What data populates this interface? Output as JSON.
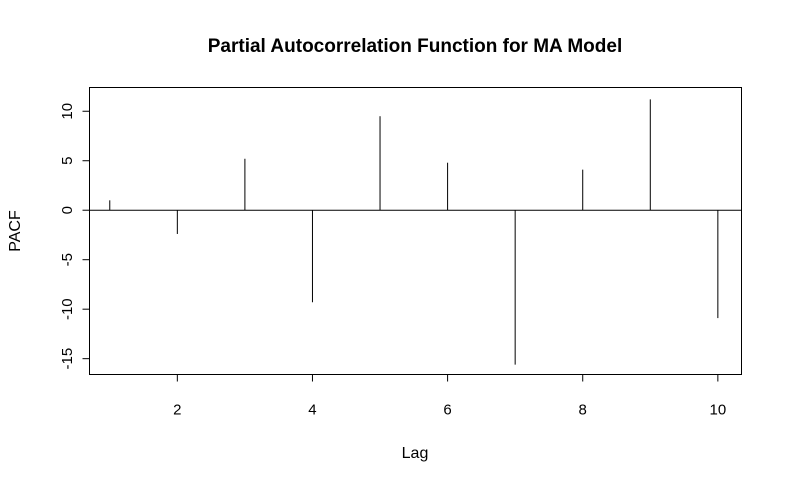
{
  "chart_data": {
    "type": "bar",
    "title": "Partial Autocorrelation Function for MA Model",
    "xlabel": "Lag",
    "ylabel": "PACF",
    "x": [
      1,
      2,
      3,
      4,
      5,
      6,
      7,
      8,
      9,
      10
    ],
    "values": [
      1.0,
      -2.4,
      5.2,
      -9.3,
      9.5,
      4.8,
      -15.6,
      4.1,
      11.2,
      -10.9
    ],
    "xticks": [
      2,
      4,
      6,
      8,
      10
    ],
    "yticks": [
      -15,
      -10,
      -5,
      0,
      5,
      10
    ],
    "xticklabels": [
      "2",
      "4",
      "6",
      "8",
      "10"
    ],
    "yticklabels": [
      "-15",
      "-10",
      "-5",
      "0",
      "5",
      "10"
    ],
    "xlim": [
      0.7,
      10.35
    ],
    "ylim": [
      -16.6,
      12.4
    ],
    "zero_line": true,
    "grid": false,
    "mark_color": "#000000"
  }
}
